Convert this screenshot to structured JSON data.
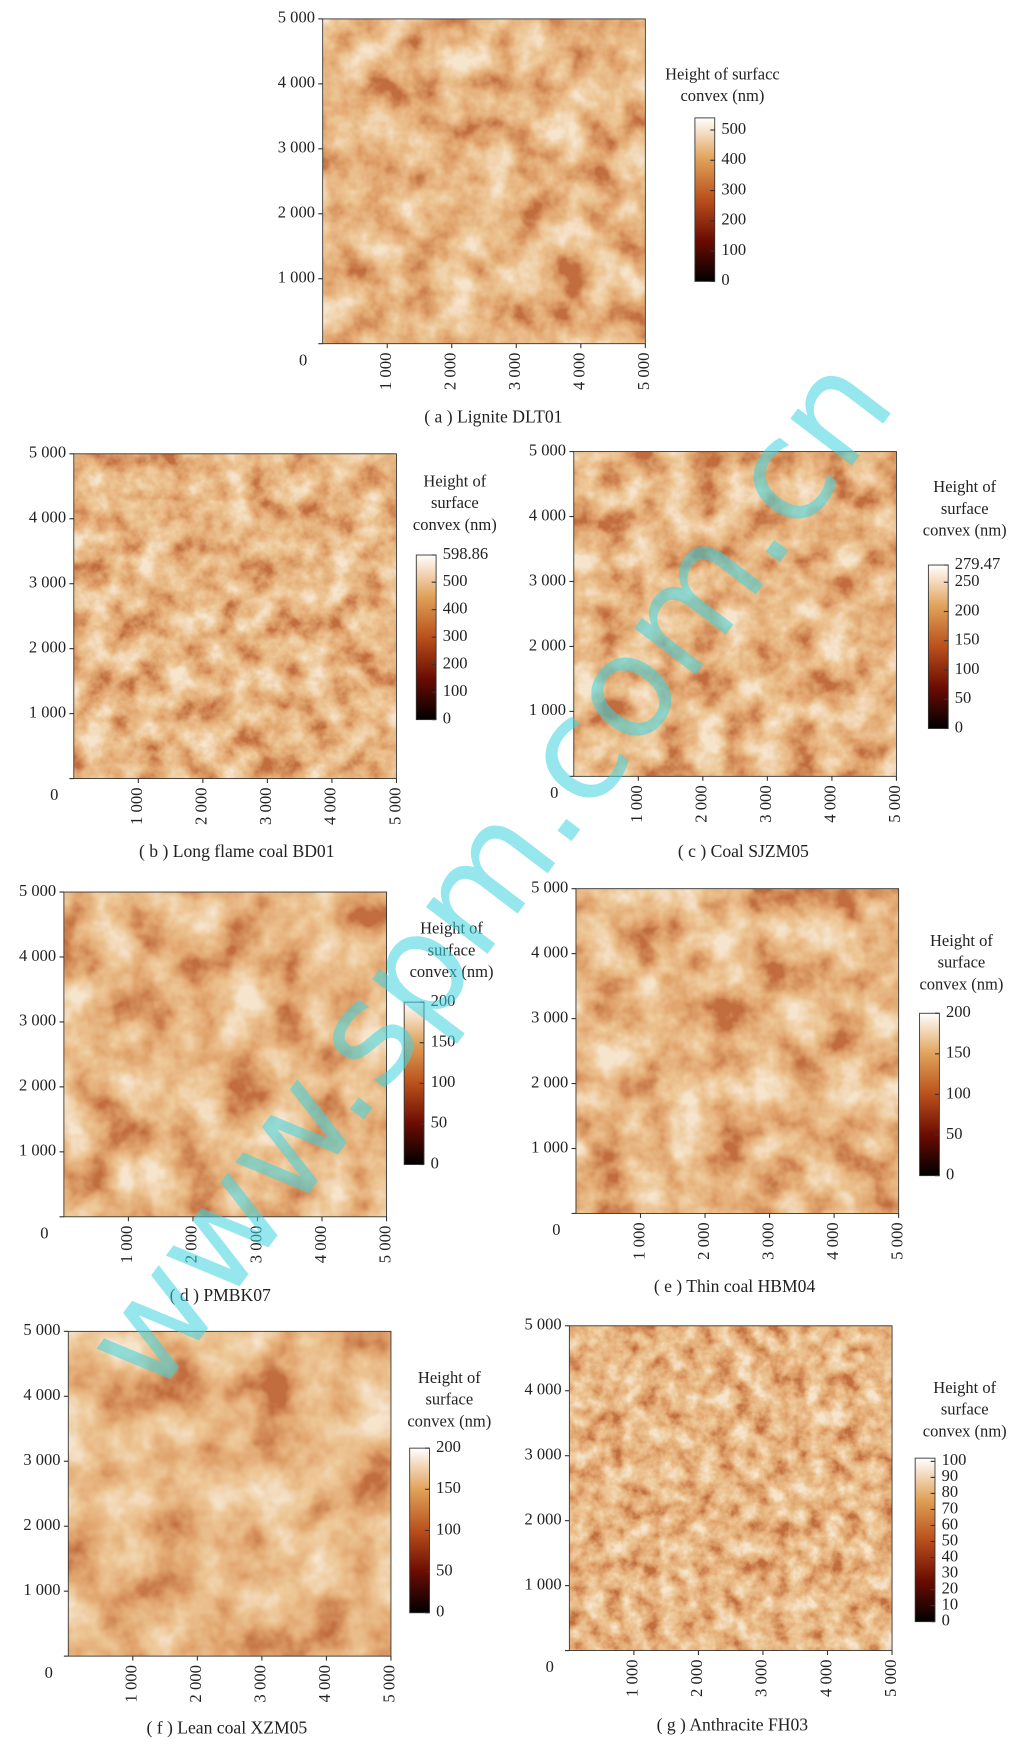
{
  "watermark": "www.spm.com.cn",
  "chart_data": [
    {
      "type": "image",
      "caption": "( a ) Lignite DLT01",
      "colorbar_title": [
        "Height of surfacc",
        "convex (nm)"
      ],
      "xlim": [
        0,
        5000
      ],
      "ylim": [
        0,
        5000
      ],
      "xticks": [
        {
          "value": 1000,
          "label": "1 000"
        },
        {
          "value": 2000,
          "label": "2 000"
        },
        {
          "value": 3000,
          "label": "3 000"
        },
        {
          "value": 4000,
          "label": "4 000"
        },
        {
          "value": 5000,
          "label": "5 000"
        }
      ],
      "yticks": [
        0,
        {
          "value": 1000,
          "label": "1 000"
        },
        {
          "value": 2000,
          "label": "2 000"
        },
        {
          "value": 3000,
          "label": "3 000"
        },
        {
          "value": 4000,
          "label": "4 000"
        },
        {
          "value": 5000,
          "label": "5 000"
        }
      ],
      "zlim": [
        0,
        540
      ],
      "zticks": [
        0,
        100,
        200,
        300,
        400,
        500
      ],
      "colormap": [
        "#000000",
        "#6b0c02",
        "#b9501c",
        "#e0a25a",
        "#ffffff"
      ]
    },
    {
      "type": "image",
      "caption": "( b ) Long flame coal BD01",
      "colorbar_title": [
        "Height of",
        "surface",
        "convex (nm)"
      ],
      "xlim": [
        0,
        5000
      ],
      "ylim": [
        0,
        5000
      ],
      "xticks": [
        {
          "value": 1000,
          "label": "1 000"
        },
        {
          "value": 2000,
          "label": "2 000"
        },
        {
          "value": 3000,
          "label": "3 000"
        },
        {
          "value": 4000,
          "label": "4 000"
        },
        {
          "value": 5000,
          "label": "5 000"
        }
      ],
      "yticks": [
        0,
        {
          "value": 1000,
          "label": "1 000"
        },
        {
          "value": 2000,
          "label": "2 000"
        },
        {
          "value": 3000,
          "label": "3 000"
        },
        {
          "value": 4000,
          "label": "4 000"
        },
        {
          "value": 5000,
          "label": "5 000"
        }
      ],
      "zlim": [
        0,
        598.86
      ],
      "zticks": [
        0,
        100,
        200,
        300,
        400,
        500,
        598.86
      ],
      "colormap": [
        "#000000",
        "#6b0c02",
        "#b9501c",
        "#e0a25a",
        "#ffffff"
      ]
    },
    {
      "type": "image",
      "caption": "( c ) Coal SJZM05",
      "colorbar_title": [
        "Height of",
        "surface",
        "convex (nm)"
      ],
      "xlim": [
        0,
        5000
      ],
      "ylim": [
        0,
        5000
      ],
      "xticks": [
        {
          "value": 1000,
          "label": "1 000"
        },
        {
          "value": 2000,
          "label": "2 000"
        },
        {
          "value": 3000,
          "label": "3 000"
        },
        {
          "value": 4000,
          "label": "4 000"
        },
        {
          "value": 5000,
          "label": "5 000"
        }
      ],
      "yticks": [
        0,
        {
          "value": 1000,
          "label": "1 000"
        },
        {
          "value": 2000,
          "label": "2 000"
        },
        {
          "value": 3000,
          "label": "3 000"
        },
        {
          "value": 4000,
          "label": "4 000"
        },
        {
          "value": 5000,
          "label": "5 000"
        }
      ],
      "zlim": [
        0,
        279.47
      ],
      "zticks": [
        0,
        50,
        100,
        150,
        200,
        250,
        279.47
      ],
      "colormap": [
        "#000000",
        "#6b0c02",
        "#b9501c",
        "#e0a25a",
        "#ffffff"
      ]
    },
    {
      "type": "image",
      "caption": "( d ) PMBK07",
      "colorbar_title": [
        "Height of",
        "surface",
        "convex (nm)"
      ],
      "xlim": [
        0,
        5000
      ],
      "ylim": [
        0,
        5000
      ],
      "xticks": [
        {
          "value": 1000,
          "label": "1 000"
        },
        {
          "value": 2000,
          "label": "2 000"
        },
        {
          "value": 3000,
          "label": "3 000"
        },
        {
          "value": 4000,
          "label": "4 000"
        },
        {
          "value": 5000,
          "label": "5 000"
        }
      ],
      "yticks": [
        0,
        {
          "value": 1000,
          "label": "1 000"
        },
        {
          "value": 2000,
          "label": "2 000"
        },
        {
          "value": 3000,
          "label": "3 000"
        },
        {
          "value": 4000,
          "label": "4 000"
        },
        {
          "value": 5000,
          "label": "5 000"
        }
      ],
      "zlim": [
        0,
        200
      ],
      "zticks": [
        0,
        50,
        100,
        150,
        200
      ],
      "colormap": [
        "#000000",
        "#6b0c02",
        "#b9501c",
        "#e0a25a",
        "#ffffff"
      ]
    },
    {
      "type": "image",
      "caption": "( e ) Thin coal HBM04",
      "colorbar_title": [
        "Height of",
        "surface",
        "convex (nm)"
      ],
      "xlim": [
        0,
        5000
      ],
      "ylim": [
        0,
        5000
      ],
      "xticks": [
        {
          "value": 1000,
          "label": "1 000"
        },
        {
          "value": 2000,
          "label": "2 000"
        },
        {
          "value": 3000,
          "label": "3 000"
        },
        {
          "value": 4000,
          "label": "4 000"
        },
        {
          "value": 5000,
          "label": "5 000"
        }
      ],
      "yticks": [
        0,
        {
          "value": 1000,
          "label": "1 000"
        },
        {
          "value": 2000,
          "label": "2 000"
        },
        {
          "value": 3000,
          "label": "3 000"
        },
        {
          "value": 4000,
          "label": "4 000"
        },
        {
          "value": 5000,
          "label": "5 000"
        }
      ],
      "zlim": [
        0,
        200
      ],
      "zticks": [
        0,
        50,
        100,
        150,
        200
      ],
      "colormap": [
        "#000000",
        "#6b0c02",
        "#b9501c",
        "#e0a25a",
        "#ffffff"
      ]
    },
    {
      "type": "image",
      "caption": "( f ) Lean coal XZM05",
      "colorbar_title": [
        "Height of",
        "surface",
        "convex (nm)"
      ],
      "xlim": [
        0,
        5000
      ],
      "ylim": [
        0,
        5000
      ],
      "xticks": [
        {
          "value": 1000,
          "label": "1 000"
        },
        {
          "value": 2000,
          "label": "2 000"
        },
        {
          "value": 3000,
          "label": "3 000"
        },
        {
          "value": 4000,
          "label": "4 000"
        },
        {
          "value": 5000,
          "label": "5 000"
        }
      ],
      "yticks": [
        0,
        {
          "value": 1000,
          "label": "1 000"
        },
        {
          "value": 2000,
          "label": "2 000"
        },
        {
          "value": 3000,
          "label": "3 000"
        },
        {
          "value": 4000,
          "label": "4 000"
        },
        {
          "value": 5000,
          "label": "5 000"
        }
      ],
      "zlim": [
        0,
        200
      ],
      "zticks": [
        0,
        50,
        100,
        150,
        200
      ],
      "colormap": [
        "#000000",
        "#6b0c02",
        "#b9501c",
        "#e0a25a",
        "#ffffff"
      ]
    },
    {
      "type": "image",
      "caption": "( g ) Anthracite FH03",
      "colorbar_title": [
        "Height of",
        "surface",
        "convex (nm)"
      ],
      "xlim": [
        0,
        5000
      ],
      "ylim": [
        0,
        5000
      ],
      "xticks": [
        {
          "value": 1000,
          "label": "1 000"
        },
        {
          "value": 2000,
          "label": "2 000"
        },
        {
          "value": 3000,
          "label": "3 000"
        },
        {
          "value": 4000,
          "label": "4 000"
        },
        {
          "value": 5000,
          "label": "5 000"
        }
      ],
      "yticks": [
        0,
        {
          "value": 1000,
          "label": "1 000"
        },
        {
          "value": 2000,
          "label": "2 000"
        },
        {
          "value": 3000,
          "label": "3 000"
        },
        {
          "value": 4000,
          "label": "4 000"
        },
        {
          "value": 5000,
          "label": "5 000"
        }
      ],
      "zlim": [
        0,
        102
      ],
      "zticks": [
        0,
        10,
        20,
        30,
        40,
        50,
        60,
        70,
        80,
        90,
        100
      ],
      "colormap": [
        "#000000",
        "#6b0c02",
        "#b9501c",
        "#e0a25a",
        "#ffffff"
      ]
    }
  ]
}
